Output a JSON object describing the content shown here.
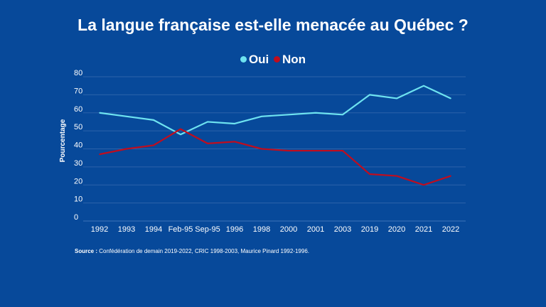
{
  "chart_data": {
    "type": "line",
    "title": "La langue française est-elle menacée au Québec ?",
    "xlabel": "",
    "ylabel": "Pourcentage",
    "ylim": [
      0,
      80
    ],
    "yticks": [
      "0",
      "10",
      "20",
      "30",
      "40",
      "50",
      "60",
      "70",
      "80"
    ],
    "grid": true,
    "legend_position": "top",
    "categories": [
      "1992",
      "1993",
      "1994",
      "Feb-95",
      "Sep-95",
      "1996",
      "1998",
      "2000",
      "2001",
      "2003",
      "2019",
      "2020",
      "2021",
      "2022"
    ],
    "series": [
      {
        "name": "Oui",
        "color": "#6EE3F0",
        "values": [
          60,
          58,
          56,
          48,
          55,
          54,
          58,
          59,
          60,
          59,
          70,
          68,
          75,
          68
        ]
      },
      {
        "name": "Non",
        "color": "#C00D1E",
        "values": [
          37,
          40,
          42,
          51,
          43,
          44,
          40,
          39,
          39,
          39,
          26,
          25,
          20,
          25
        ]
      }
    ]
  },
  "source": {
    "label": "Source :",
    "text": " Confédération de demain 2019-2022, CRIC 1998-2003, Maurice Pinard 1992-1996."
  }
}
